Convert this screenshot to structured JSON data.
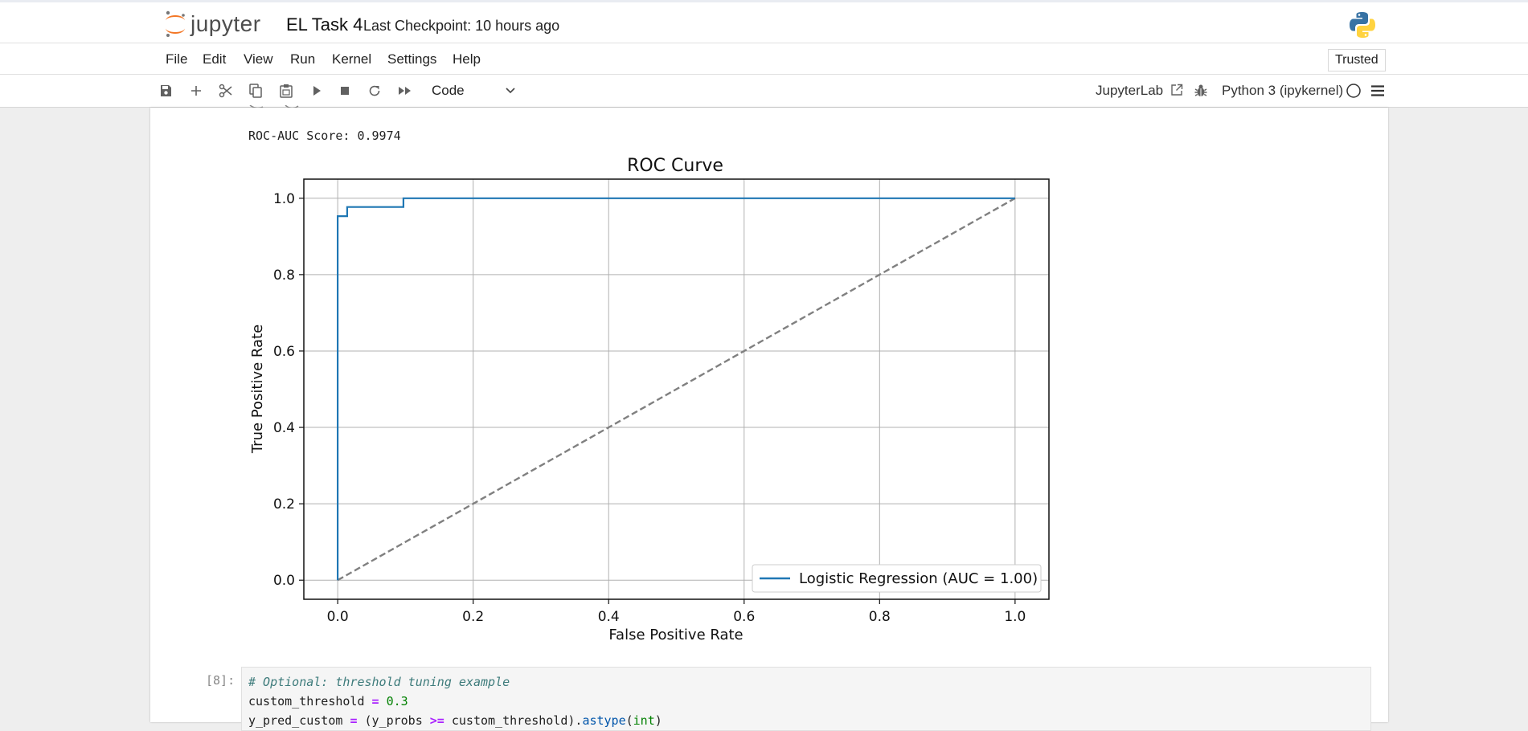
{
  "header": {
    "logo_text": "jupyter",
    "notebook_title": "EL Task 4",
    "checkpoint": "Last Checkpoint: 10 hours ago",
    "kernel_logo": "python-logo-icon"
  },
  "menu": {
    "items": [
      "File",
      "Edit",
      "View",
      "Run",
      "Kernel",
      "Settings",
      "Help"
    ],
    "trusted": "Trusted"
  },
  "toolbar": {
    "icons": [
      "save-icon",
      "add-cell-icon",
      "cut-icon",
      "copy-icon",
      "paste-icon",
      "run-icon",
      "stop-icon",
      "restart-icon",
      "fast-forward-icon"
    ],
    "cell_type": "Code",
    "jupyterlab_link": "JupyterLab",
    "kernel": "Python 3 (ipykernel)"
  },
  "output": {
    "score_text": "ROC-AUC Score: 0.9974"
  },
  "chart_data": {
    "type": "line",
    "title": "ROC Curve",
    "xlabel": "False Positive Rate",
    "ylabel": "True Positive Rate",
    "xlim": [
      -0.05,
      1.05
    ],
    "ylim": [
      -0.05,
      1.05
    ],
    "xticks": [
      "0.0",
      "0.2",
      "0.4",
      "0.6",
      "0.8",
      "1.0"
    ],
    "yticks": [
      "0.0",
      "0.2",
      "0.4",
      "0.6",
      "0.8",
      "1.0"
    ],
    "grid": true,
    "legend_position": "lower-right",
    "series": [
      {
        "name": "Logistic Regression (AUC = 1.00)",
        "color": "#1f77b4",
        "style": "solid",
        "points": [
          [
            0,
            0
          ],
          [
            0,
            0.953
          ],
          [
            0.014,
            0.953
          ],
          [
            0.014,
            0.977
          ],
          [
            0.097,
            0.977
          ],
          [
            0.097,
            1.0
          ],
          [
            1.0,
            1.0
          ]
        ]
      },
      {
        "color": "#808080",
        "style": "dashed",
        "points": [
          [
            0,
            0
          ],
          [
            1,
            1
          ]
        ]
      }
    ]
  },
  "code_cell": {
    "prompt": "[8]:",
    "comment": "# Optional: threshold tuning example",
    "line2_var": "custom_threshold",
    "eq": "=",
    "line2_val": "0.3",
    "line3_a": "y_pred_custom",
    "line3_b": " (y_probs ",
    "ge": ">=",
    "line3_c": " custom_threshold).",
    "astype": "astype",
    "line3_d": "(",
    "int_kw": "int",
    "line3_e": ")"
  }
}
